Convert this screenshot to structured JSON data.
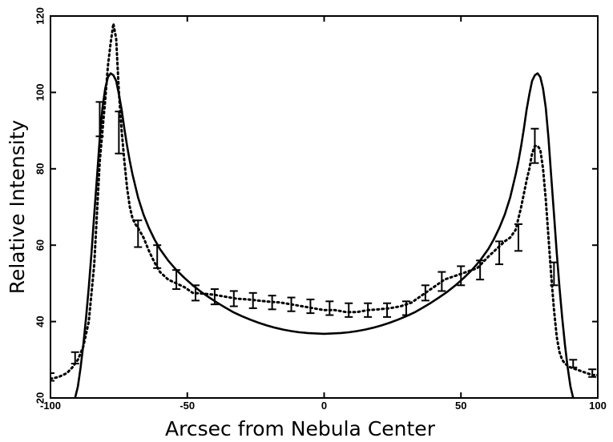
{
  "chart_data": {
    "type": "line",
    "title": "",
    "xlabel": "Arcsec from Nebula Center",
    "ylabel": "Relative Intensity",
    "xlim": [
      -100,
      100
    ],
    "ylim": [
      20,
      120
    ],
    "xticks": [
      -100,
      -50,
      0,
      50,
      100
    ],
    "yticks": [
      20,
      40,
      60,
      80,
      100,
      120
    ],
    "x_tick_labels": [
      "-100",
      "-50",
      "0",
      "50",
      "100"
    ],
    "y_tick_labels": [
      "20",
      "40",
      "60",
      "80",
      "100",
      "120"
    ],
    "grid": false,
    "legend": "none",
    "colors": {
      "model": "#000000",
      "observed": "#000000",
      "errorbars": "#000000"
    },
    "series": [
      {
        "style": "solid",
        "x": [
          -91,
          -90,
          -89,
          -88,
          -87,
          -86,
          -85,
          -84,
          -83,
          -82,
          -81,
          -80,
          -79,
          -78,
          -77,
          -76,
          -75,
          -74,
          -73,
          -72,
          -71,
          -70,
          -68,
          -66,
          -64,
          -62,
          -60,
          -57,
          -54,
          -51,
          -48,
          -45,
          -42,
          -39,
          -36,
          -33,
          -30,
          -27,
          -24,
          -21,
          -18,
          -15,
          -12,
          -9,
          -6,
          -3,
          0,
          3,
          6,
          9,
          12,
          15,
          18,
          21,
          24,
          27,
          30,
          33,
          36,
          39,
          42,
          45,
          48,
          51,
          54,
          57,
          60,
          62,
          64,
          66,
          68,
          70,
          71,
          72,
          73,
          74,
          75,
          76,
          77,
          78,
          79,
          80,
          81,
          82,
          83,
          84,
          85,
          86,
          87,
          88,
          89,
          90,
          91
        ],
        "y": [
          20,
          23,
          28,
          34,
          41,
          49,
          58,
          68,
          78,
          88,
          96,
          101,
          104,
          105,
          104.5,
          103,
          99.5,
          95.5,
          90.5,
          86,
          82,
          78.5,
          72.5,
          68,
          64.5,
          61.5,
          59,
          56,
          53.5,
          51.4,
          49.5,
          47.8,
          46.3,
          44.9,
          43.6,
          42.4,
          41.4,
          40.5,
          39.7,
          39,
          38.4,
          37.9,
          37.5,
          37.2,
          37,
          36.9,
          36.8,
          36.9,
          37,
          37.2,
          37.5,
          37.9,
          38.4,
          39,
          39.7,
          40.5,
          41.4,
          42.4,
          43.6,
          44.9,
          46.3,
          47.8,
          49.5,
          51.4,
          53.5,
          56,
          59,
          61.5,
          64.5,
          68,
          72.5,
          78.5,
          82,
          86,
          90.5,
          95.5,
          99.5,
          103,
          104.5,
          105,
          104,
          101,
          96,
          88,
          78,
          68,
          58,
          49,
          41,
          34,
          28,
          23,
          20
        ]
      },
      {
        "style": "dotted",
        "x": [
          -100,
          -97,
          -94,
          -92,
          -90,
          -88,
          -86,
          -84,
          -82,
          -81,
          -80,
          -79,
          -78,
          -77,
          -76,
          -75,
          -74,
          -73,
          -72,
          -71,
          -70,
          -69,
          -68,
          -66,
          -64,
          -62,
          -60,
          -57,
          -54,
          -51,
          -48,
          -44,
          -40,
          -36,
          -32,
          -28,
          -24,
          -20,
          -16,
          -12,
          -8,
          -4,
          0,
          4,
          8,
          12,
          16,
          20,
          24,
          28,
          32,
          36,
          40,
          44,
          48,
          52,
          56,
          60,
          63,
          66,
          68,
          70,
          72,
          74,
          75,
          76,
          77,
          78,
          79,
          80,
          81,
          82,
          83,
          84,
          85,
          86,
          87,
          88,
          89,
          90,
          92,
          94,
          96,
          98,
          100
        ],
        "y": [
          25,
          25.5,
          26.5,
          28,
          30,
          33.5,
          40,
          55,
          82,
          90,
          98,
          107,
          113,
          118,
          114,
          100,
          90,
          82,
          75,
          70,
          67,
          65.5,
          64.5,
          62,
          58.5,
          55.5,
          53,
          51,
          50,
          49,
          47.5,
          47.3,
          47,
          46.5,
          46,
          45.8,
          45.5,
          45.2,
          45,
          44.5,
          44,
          43.5,
          43,
          43,
          42.5,
          42.5,
          43,
          43.2,
          43.5,
          44,
          45,
          47,
          49,
          51,
          52,
          53,
          54,
          57,
          59,
          61,
          62,
          64,
          70,
          77,
          80,
          84,
          86,
          86,
          85,
          80,
          72,
          62,
          52,
          43,
          36,
          32,
          30,
          29,
          28.5,
          28,
          27.5,
          27,
          26.5,
          26,
          26
        ]
      },
      {
        "style": "errorbars",
        "x": [
          -100,
          -91,
          -82,
          -75,
          -68,
          -61,
          -54,
          -47,
          -40,
          -33,
          -26,
          -19,
          -12,
          -5,
          2,
          9,
          16,
          23,
          30,
          37,
          43,
          50,
          57,
          64,
          71,
          77,
          84,
          91,
          98
        ],
        "y": [
          25.5,
          30.5,
          93,
          89.5,
          63,
          57,
          51,
          47.5,
          46.5,
          46,
          45.5,
          45,
          44.5,
          44,
          43.5,
          43,
          43,
          43,
          43.5,
          47.5,
          50.5,
          52,
          53.5,
          58,
          62,
          86,
          52.5,
          29,
          26.5
        ],
        "yerr": [
          1,
          1.5,
          4.5,
          5.5,
          3.5,
          3,
          2.5,
          2,
          2,
          2,
          2,
          1.8,
          1.8,
          1.8,
          1.8,
          1.8,
          1.8,
          1.8,
          1.8,
          2,
          2.5,
          2.5,
          2.5,
          3,
          3.5,
          4.5,
          3,
          1,
          1
        ]
      }
    ]
  }
}
